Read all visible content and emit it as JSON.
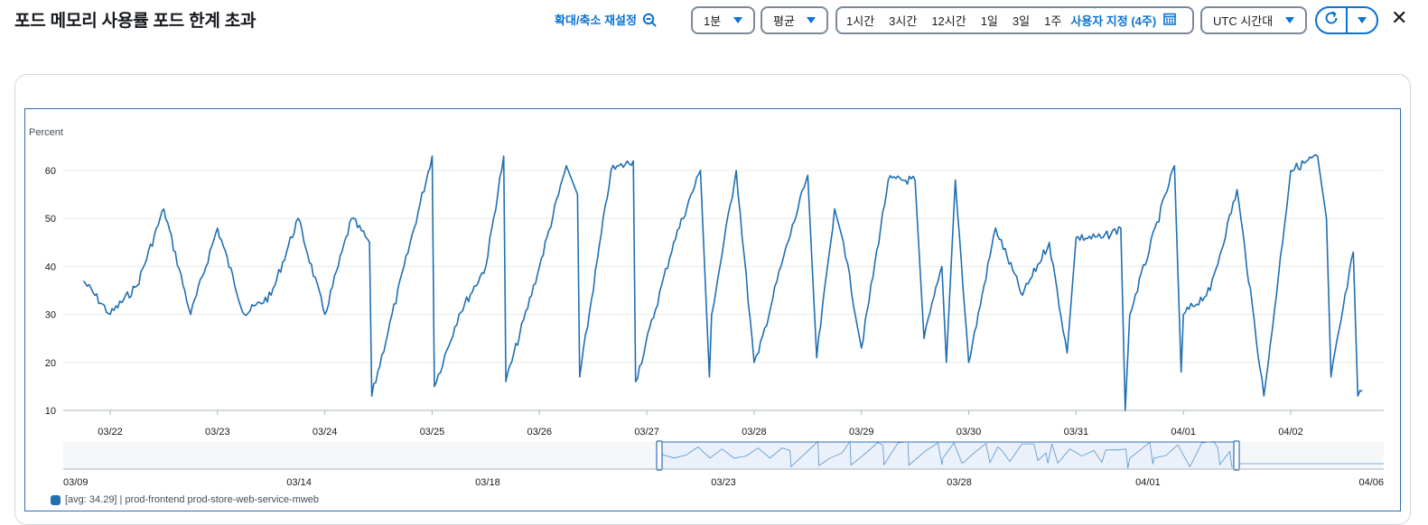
{
  "header": {
    "title": "포드 메모리 사용률 포드 한계 초과",
    "reset_zoom_label": "확대/축소 재설정",
    "period_value": "1분",
    "stat_value": "평균",
    "time_ranges": [
      "1시간",
      "3시간",
      "12시간",
      "1일",
      "3일",
      "1주"
    ],
    "custom_range_label": "사용자 지정 (4주)",
    "timezone_value": "UTC 시간대"
  },
  "colors": {
    "series": "#1f6fb4",
    "accent": "#0972d3",
    "grid": "#e9ebed"
  },
  "legend": {
    "label": "[avg: 34.29] | prod-frontend prod-store-web-service-mweb"
  },
  "chart_data": [
    {
      "type": "line",
      "ylabel": "Percent",
      "ylim": [
        10,
        60
      ],
      "yticks": [
        10,
        20,
        30,
        40,
        50,
        60
      ],
      "x_start": "03/21 ~18:00",
      "x_end": "04/02 ~16:00",
      "xticks": [
        "03/22",
        "03/23",
        "03/24",
        "03/25",
        "03/26",
        "03/27",
        "03/28",
        "03/29",
        "03/30",
        "03/31",
        "04/01",
        "04/02"
      ],
      "series": [
        {
          "name": "prod-frontend prod-store-web-service-mweb",
          "avg": 34.29,
          "x": [
            "03/21 18:00",
            "03/22 00:00",
            "03/22 06:00",
            "03/22 12:00",
            "03/22 18:00",
            "03/23 00:00",
            "03/23 06:00",
            "03/23 12:00",
            "03/23 18:00",
            "03/24 00:00",
            "03/24 06:00",
            "03/24 10:00",
            "03/24 10:30",
            "03/25 00:00",
            "03/25 00:30",
            "03/25 06:00",
            "03/25 12:00",
            "03/25 16:00",
            "03/25 16:30",
            "03/26 00:00",
            "03/26 06:00",
            "03/26 08:30",
            "03/26 09:00",
            "03/26 16:00",
            "03/26 21:00",
            "03/26 21:30",
            "03/27 06:00",
            "03/27 12:00",
            "03/27 14:00",
            "03/27 14:30",
            "03/27 20:00",
            "03/28 00:00",
            "03/28 01:00",
            "03/28 06:00",
            "03/28 12:00",
            "03/28 14:00",
            "03/28 18:00",
            "03/28 20:00",
            "03/29 00:00",
            "03/29 06:00",
            "03/29 12:00",
            "03/29 14:00",
            "03/29 18:00",
            "03/29 19:00",
            "03/29 21:00",
            "03/30 00:00",
            "03/30 06:00",
            "03/30 12:00",
            "03/30 18:00",
            "03/30 22:00",
            "03/31 00:00",
            "03/31 06:00",
            "03/31 10:00",
            "03/31 11:00",
            "03/31 12:00",
            "03/31 22:00",
            "03/31 23:30",
            "04/01 00:00",
            "04/01 06:00",
            "04/01 12:00",
            "04/01 18:00",
            "04/01 19:00",
            "04/02 00:00",
            "04/02 06:00",
            "04/02 08:00",
            "04/02 09:00",
            "04/02 14:00",
            "04/02 15:00",
            "04/02 16:00"
          ],
          "y": [
            37,
            30,
            36,
            52,
            30,
            48,
            30,
            34,
            50,
            30,
            50,
            45,
            13,
            63,
            15,
            30,
            40,
            63,
            16,
            40,
            61,
            55,
            17,
            60,
            62,
            16,
            45,
            60,
            17,
            30,
            60,
            20,
            22,
            40,
            59,
            21,
            52,
            45,
            23,
            58,
            58,
            25,
            40,
            20,
            58,
            20,
            48,
            34,
            45,
            22,
            46,
            46,
            48,
            10,
            30,
            61,
            18,
            30,
            35,
            56,
            13,
            20,
            60,
            63,
            50,
            17,
            43,
            13,
            14
          ]
        }
      ]
    },
    {
      "type": "line",
      "role": "navigator",
      "xticks": [
        "03/09",
        "03/14",
        "03/18",
        "03/23",
        "03/28",
        "04/01",
        "04/06"
      ],
      "selection": [
        "03/21",
        "04/02"
      ]
    }
  ]
}
